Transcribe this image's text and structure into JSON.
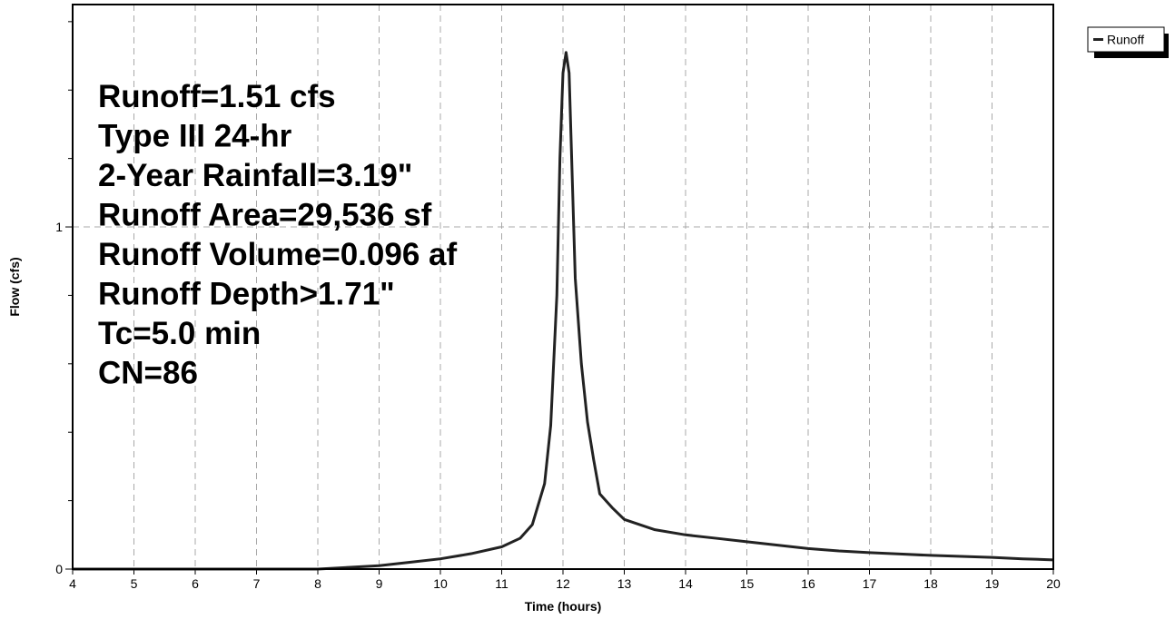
{
  "chart_data": {
    "type": "line",
    "xlabel": "Time  (hours)",
    "ylabel": "Flow  (cfs)",
    "xlim": [
      4,
      20
    ],
    "ylim": [
      0,
      1.65
    ],
    "x_ticks": [
      4,
      5,
      6,
      7,
      8,
      9,
      10,
      11,
      12,
      13,
      14,
      15,
      16,
      17,
      18,
      19,
      20
    ],
    "y_tick_labels": [
      {
        "value": 0,
        "label": "0"
      },
      {
        "value": 1,
        "label": "1"
      }
    ],
    "y_minor_ticks": [
      0.2,
      0.4,
      0.6,
      0.8,
      1.2,
      1.4,
      1.6
    ],
    "grid": true,
    "legend_position": "top-right",
    "legend": [
      "Runoff"
    ],
    "annotations": [
      "Runoff=1.51 cfs",
      "Type III 24-hr",
      "2-Year Rainfall=3.19\"",
      "Runoff Area=29,536 sf",
      "Runoff Volume=0.096 af",
      "Runoff Depth>1.71\"",
      "Tc=5.0 min",
      "CN=86"
    ],
    "series": [
      {
        "name": "Runoff",
        "color": "#222222",
        "x": [
          4,
          7.0,
          8.0,
          8.5,
          9.0,
          9.5,
          10.0,
          10.5,
          11.0,
          11.3,
          11.5,
          11.7,
          11.8,
          11.9,
          11.95,
          12.0,
          12.05,
          12.1,
          12.15,
          12.2,
          12.3,
          12.4,
          12.5,
          12.6,
          12.8,
          13.0,
          13.5,
          14.0,
          14.5,
          15.0,
          15.5,
          16.0,
          16.5,
          17.0,
          17.5,
          18.0,
          18.5,
          19.0,
          19.5,
          20.0
        ],
        "values": [
          0,
          0,
          0.0,
          0.005,
          0.01,
          0.02,
          0.03,
          0.045,
          0.065,
          0.09,
          0.13,
          0.25,
          0.42,
          0.8,
          1.2,
          1.45,
          1.51,
          1.45,
          1.15,
          0.85,
          0.6,
          0.43,
          0.32,
          0.22,
          0.18,
          0.145,
          0.115,
          0.1,
          0.09,
          0.08,
          0.07,
          0.06,
          0.053,
          0.048,
          0.044,
          0.04,
          0.037,
          0.034,
          0.03,
          0.027
        ]
      }
    ]
  }
}
